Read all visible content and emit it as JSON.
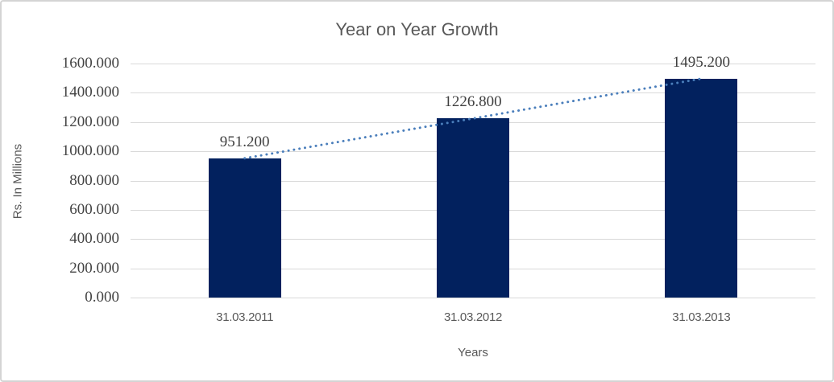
{
  "chart_data": {
    "type": "bar",
    "title": "Year on Year Growth",
    "categories": [
      "31.03.2011",
      "31.03.2012",
      "31.03.2013"
    ],
    "values": [
      951.2,
      1226.8,
      1495.2
    ],
    "value_labels": [
      "951.200",
      "1226.800",
      "1495.200"
    ],
    "xlabel": "Years",
    "ylabel": "Rs. In Millions",
    "ylim": [
      0,
      1600
    ],
    "ytick_step": 200,
    "ytick_decimals": 3,
    "ytick_labels": [
      "0.000",
      "200.000",
      "400.000",
      "600.000",
      "800.000",
      "1000.000",
      "1200.000",
      "1400.000",
      "1600.000"
    ],
    "grid": true,
    "legend": "none",
    "trendline": {
      "type": "linear",
      "style": "dotted",
      "color": "#4A7EBB"
    },
    "colors": {
      "bar": "#02215E",
      "gridline": "#D9D9D9",
      "axis_line": "#D9D9D9",
      "title_text": "#595959",
      "axis_title_text": "#595959",
      "category_text": "#595959",
      "ytick_text": "#444444",
      "data_label_text": "#3F3F3F",
      "frame_border": "#D4D4D4"
    }
  }
}
